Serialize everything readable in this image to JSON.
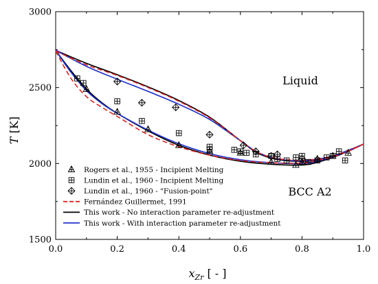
{
  "chart_data": {
    "type": "scatter",
    "xlabel": "x_Zr [ - ]",
    "xlabel_main": "x",
    "xlabel_sub": "Zr",
    "xlabel_unit": " [ - ]",
    "ylabel": "T [K]",
    "ylabel_main": "T",
    "ylabel_unit": " [K]",
    "xlim": [
      0,
      1
    ],
    "ylim": [
      1500,
      3000
    ],
    "xticks": [
      "0.0",
      "0.2",
      "0.4",
      "0.6",
      "0.8",
      "1.0"
    ],
    "yticks": [
      "1500",
      "2000",
      "2500",
      "3000"
    ],
    "region_labels": {
      "liquid": "Liquid",
      "bcc": "BCC A2"
    },
    "legend_position": "bottom-left",
    "series": [
      {
        "name": "Rogers et al., 1955 - Incipient Melting",
        "kind": "points",
        "marker": "triangle-cross",
        "x": [
          0.1,
          0.2,
          0.3,
          0.4,
          0.5,
          0.6,
          0.7,
          0.78,
          0.8,
          0.85,
          0.9,
          0.95
        ],
        "y": [
          2490,
          2340,
          2225,
          2120,
          2080,
          2070,
          2010,
          1990,
          2010,
          2030,
          2050,
          2070
        ]
      },
      {
        "name": "Lundin et al., 1960 -  Incipient Melting",
        "kind": "points",
        "marker": "square-cross",
        "x": [
          0.07,
          0.09,
          0.2,
          0.28,
          0.4,
          0.5,
          0.5,
          0.58,
          0.6,
          0.62,
          0.65,
          0.7,
          0.72,
          0.75,
          0.78,
          0.8,
          0.82,
          0.85,
          0.88,
          0.9,
          0.92,
          0.94
        ],
        "y": [
          2560,
          2530,
          2410,
          2280,
          2200,
          2110,
          2090,
          2090,
          2080,
          2070,
          2060,
          2050,
          2030,
          2020,
          2040,
          2050,
          2010,
          2020,
          2040,
          2050,
          2080,
          2020
        ]
      },
      {
        "name": "Lundin et al., 1960 - \"Fusion-point\"",
        "kind": "points",
        "marker": "diamond-cross",
        "x": [
          0.2,
          0.28,
          0.39,
          0.5,
          0.61,
          0.65,
          0.7,
          0.72,
          0.8
        ],
        "y": [
          2540,
          2400,
          2370,
          2190,
          2120,
          2080,
          2050,
          2060,
          2030
        ]
      },
      {
        "name": "Fernández Guillermet, 1991",
        "kind": "dashed",
        "color": "#dd2222",
        "liquidus": {
          "x": [
            0,
            0.1,
            0.2,
            0.3,
            0.4,
            0.5,
            0.6,
            0.65,
            0.7,
            0.75,
            0.8,
            0.85,
            0.9,
            0.95,
            1.0
          ],
          "y": [
            2740,
            2650,
            2580,
            2500,
            2410,
            2300,
            2150,
            2080,
            2040,
            2025,
            2020,
            2030,
            2050,
            2085,
            2128
          ]
        },
        "solidus": {
          "x": [
            0,
            0.05,
            0.1,
            0.15,
            0.2,
            0.3,
            0.4,
            0.5,
            0.6,
            0.7,
            0.8,
            0.85,
            0.9,
            0.95,
            1.0
          ],
          "y": [
            2740,
            2560,
            2440,
            2370,
            2310,
            2190,
            2110,
            2055,
            2020,
            2005,
            2003,
            2020,
            2045,
            2080,
            2128
          ]
        }
      },
      {
        "name": "This work - No interaction parameter re-adjustment",
        "kind": "solid",
        "color": "#000000",
        "liquidus": {
          "x": [
            0,
            0.1,
            0.2,
            0.3,
            0.4,
            0.5,
            0.6,
            0.65,
            0.7,
            0.75,
            0.8,
            0.85,
            0.9,
            0.95,
            1.0
          ],
          "y": [
            2745,
            2660,
            2585,
            2505,
            2415,
            2305,
            2150,
            2075,
            2035,
            2018,
            2015,
            2025,
            2048,
            2085,
            2128
          ]
        },
        "solidus": {
          "x": [
            0,
            0.05,
            0.1,
            0.15,
            0.2,
            0.3,
            0.4,
            0.5,
            0.6,
            0.7,
            0.8,
            0.85,
            0.9,
            0.95,
            1.0
          ],
          "y": [
            2745,
            2610,
            2490,
            2400,
            2330,
            2215,
            2120,
            2055,
            2015,
            1995,
            1990,
            2008,
            2040,
            2080,
            2128
          ]
        }
      },
      {
        "name": "This work - With interaction parameter re-adjustment",
        "kind": "solid",
        "color": "#2233cc",
        "liquidus": {
          "x": [
            0,
            0.1,
            0.2,
            0.3,
            0.4,
            0.5,
            0.6,
            0.65,
            0.7,
            0.75,
            0.8,
            0.85,
            0.9,
            0.95,
            1.0
          ],
          "y": [
            2745,
            2640,
            2555,
            2475,
            2390,
            2290,
            2150,
            2080,
            2040,
            2022,
            2018,
            2028,
            2050,
            2087,
            2128
          ]
        },
        "solidus": {
          "x": [
            0,
            0.05,
            0.1,
            0.15,
            0.2,
            0.3,
            0.4,
            0.5,
            0.6,
            0.7,
            0.8,
            0.85,
            0.9,
            0.95,
            1.0
          ],
          "y": [
            2745,
            2600,
            2480,
            2395,
            2330,
            2220,
            2130,
            2065,
            2025,
            2005,
            2000,
            2015,
            2045,
            2082,
            2128
          ]
        }
      }
    ]
  }
}
